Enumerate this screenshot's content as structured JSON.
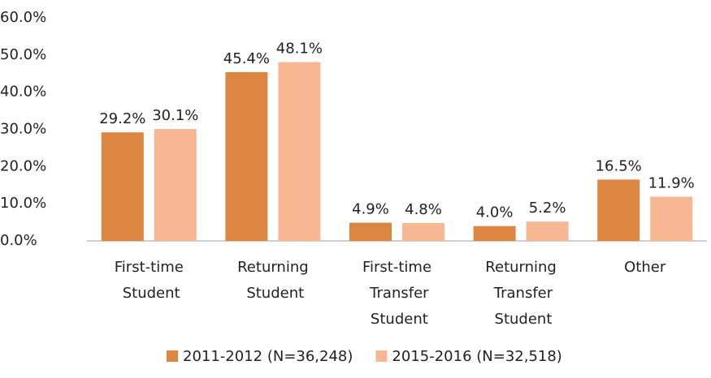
{
  "chart_data": {
    "type": "bar",
    "categories": [
      "First-time Student",
      "Returning Student",
      "First-time Transfer Student",
      "Returning Transfer Student",
      "Other"
    ],
    "series": [
      {
        "name": "2011-2012 (N=36,248)",
        "color": "#dc8642",
        "values": [
          29.2,
          45.4,
          4.9,
          4.0,
          16.5
        ],
        "value_labels": [
          "29.2%",
          "45.4%",
          "4.9%",
          "4.0%",
          "16.5%"
        ]
      },
      {
        "name": "2015-2016 (N=32,518)",
        "color": "#f8b793",
        "values": [
          30.1,
          48.1,
          4.8,
          5.2,
          11.9
        ],
        "value_labels": [
          "30.1%",
          "48.1%",
          "4.8%",
          "5.2%",
          "11.9%"
        ]
      }
    ],
    "ylim": [
      0,
      60
    ],
    "yticks": [
      {
        "value": 0,
        "label": "0.0%"
      },
      {
        "value": 10,
        "label": "10.0%"
      },
      {
        "value": 20,
        "label": "20.0%"
      },
      {
        "value": 30,
        "label": "30.0%"
      },
      {
        "value": 40,
        "label": "40.0%"
      },
      {
        "value": 50,
        "label": "50.0%"
      },
      {
        "value": 60,
        "label": "60.0%"
      }
    ],
    "grid": false,
    "legend": "bottom"
  }
}
